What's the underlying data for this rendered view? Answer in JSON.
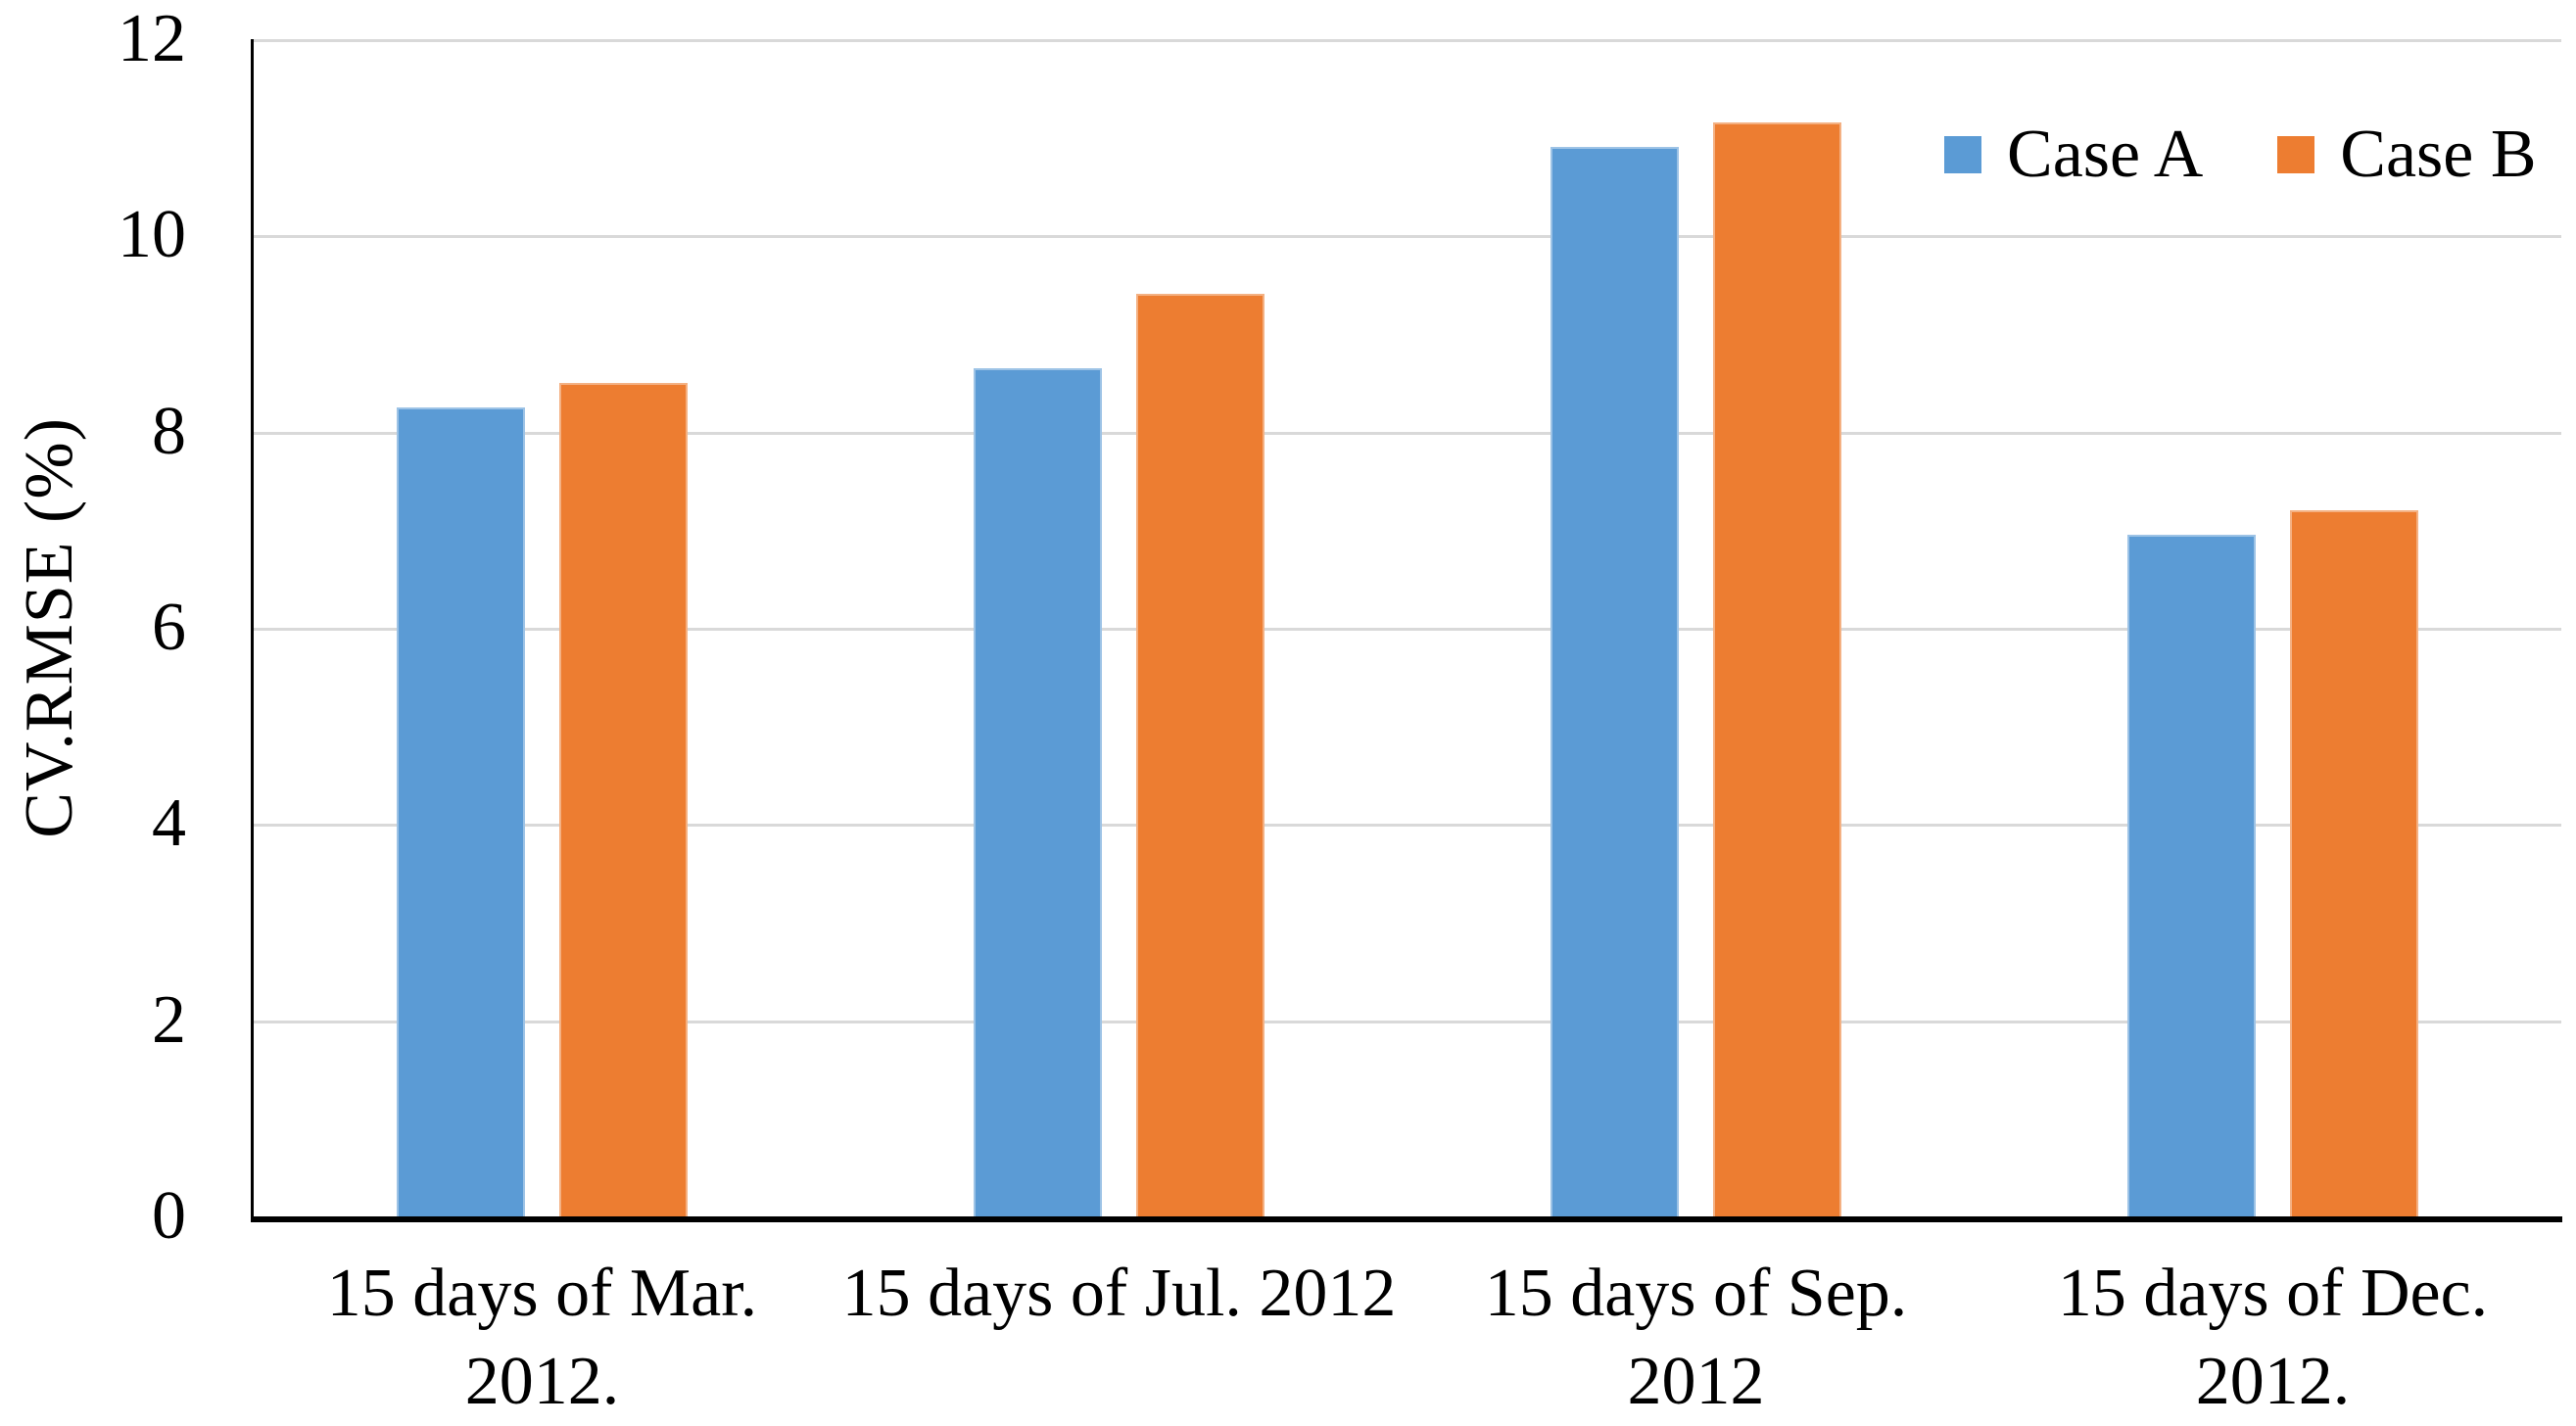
{
  "figure": {
    "background": "#FFFFFF",
    "text_color": "#000000",
    "axis_color": "#000000",
    "gridline_color": "#D9D9D9"
  },
  "chart_data": {
    "type": "bar",
    "title": "",
    "xlabel": "",
    "ylabel": "CV.RMSE (%)",
    "ylim": [
      0,
      12
    ],
    "yticks": [
      0,
      2,
      4,
      6,
      8,
      10,
      12
    ],
    "grid": "horizontal",
    "legend_position": "top-right-inside",
    "categories": [
      "15 days of Mar. 2012.",
      "15 days of Jul. 2012",
      "15 days of Sep. 2012",
      "15 days of Dec. 2012."
    ],
    "category_lines": [
      [
        "15 days of Mar.",
        "2012."
      ],
      [
        "15 days of Jul. 2012"
      ],
      [
        "15 days of Sep.",
        "2012"
      ],
      [
        "15 days of Dec.",
        "2012."
      ]
    ],
    "series": [
      {
        "name": "Case A",
        "color": "#5B9BD5",
        "border_color": "#9DC3E6",
        "values": [
          8.25,
          8.65,
          10.9,
          6.95
        ]
      },
      {
        "name": "Case B",
        "color": "#ED7D31",
        "border_color": "#F4B183",
        "values": [
          8.5,
          9.4,
          11.15,
          7.2
        ]
      }
    ]
  }
}
